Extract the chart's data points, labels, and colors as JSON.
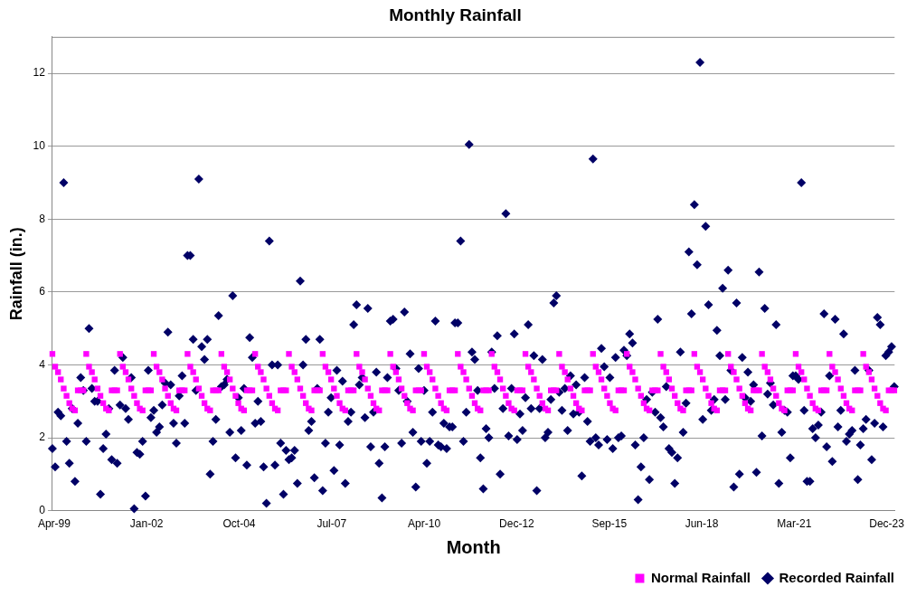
{
  "chart_data": {
    "type": "scatter",
    "title": "Monthly Rainfall",
    "xlabel": "Month",
    "ylabel": "Rainfall (in.)",
    "x": [
      "1999-04",
      "1999-05",
      "1999-06",
      "1999-07",
      "1999-08",
      "1999-09",
      "1999-10",
      "1999-11",
      "1999-12",
      "2000-01",
      "2000-02",
      "2000-03",
      "2000-04",
      "2000-05",
      "2000-06",
      "2000-07",
      "2000-08",
      "2000-09",
      "2000-10",
      "2000-11",
      "2000-12",
      "2001-01",
      "2001-02",
      "2001-03",
      "2001-04",
      "2001-05",
      "2001-06",
      "2001-07",
      "2001-08",
      "2001-09",
      "2001-10",
      "2001-11",
      "2001-12",
      "2002-01",
      "2002-02",
      "2002-03",
      "2002-04",
      "2002-05",
      "2002-06",
      "2002-07",
      "2002-08",
      "2002-09",
      "2002-10",
      "2002-11",
      "2002-12",
      "2003-01",
      "2003-02",
      "2003-03",
      "2003-04",
      "2003-05",
      "2003-06",
      "2003-07",
      "2003-08",
      "2003-09",
      "2003-10",
      "2003-11",
      "2003-12",
      "2004-01",
      "2004-02",
      "2004-03",
      "2004-04",
      "2004-05",
      "2004-06",
      "2004-07",
      "2004-08",
      "2004-09",
      "2004-10",
      "2004-11",
      "2004-12",
      "2005-01",
      "2005-02",
      "2005-03",
      "2005-04",
      "2005-05",
      "2005-06",
      "2005-07",
      "2005-08",
      "2005-09",
      "2005-10",
      "2005-11",
      "2005-12",
      "2006-01",
      "2006-02",
      "2006-03",
      "2006-04",
      "2006-05",
      "2006-06",
      "2006-07",
      "2006-08",
      "2006-09",
      "2006-10",
      "2006-11",
      "2006-12",
      "2007-01",
      "2007-02",
      "2007-03",
      "2007-04",
      "2007-05",
      "2007-06",
      "2007-07",
      "2007-08",
      "2007-09",
      "2007-10",
      "2007-11",
      "2007-12",
      "2008-01",
      "2008-02",
      "2008-03",
      "2008-04",
      "2008-05",
      "2008-06",
      "2008-07",
      "2008-08",
      "2008-09",
      "2008-10",
      "2008-11",
      "2008-12",
      "2009-01",
      "2009-02",
      "2009-03",
      "2009-04",
      "2009-05",
      "2009-06",
      "2009-07",
      "2009-08",
      "2009-09",
      "2009-10",
      "2009-11",
      "2009-12",
      "2010-01",
      "2010-02",
      "2010-03",
      "2010-04",
      "2010-05",
      "2010-06",
      "2010-07",
      "2010-08",
      "2010-09",
      "2010-10",
      "2010-11",
      "2010-12",
      "2011-01",
      "2011-02",
      "2011-03",
      "2011-04",
      "2011-05",
      "2011-06",
      "2011-07",
      "2011-08",
      "2011-09",
      "2011-10",
      "2011-11",
      "2011-12",
      "2012-01",
      "2012-02",
      "2012-03",
      "2012-04",
      "2012-05",
      "2012-06",
      "2012-07",
      "2012-08",
      "2012-09",
      "2012-10",
      "2012-11",
      "2012-12",
      "2013-01",
      "2013-02",
      "2013-03",
      "2013-04",
      "2013-05",
      "2013-06",
      "2013-07",
      "2013-08",
      "2013-09",
      "2013-10",
      "2013-11",
      "2013-12",
      "2014-01",
      "2014-02",
      "2014-03",
      "2014-04",
      "2014-05",
      "2014-06",
      "2014-07",
      "2014-08",
      "2014-09",
      "2014-10",
      "2014-11",
      "2014-12",
      "2015-01",
      "2015-02",
      "2015-03",
      "2015-04",
      "2015-05",
      "2015-06",
      "2015-07",
      "2015-08",
      "2015-09",
      "2015-10",
      "2015-11",
      "2015-12",
      "2016-01",
      "2016-02",
      "2016-03",
      "2016-04",
      "2016-05",
      "2016-06",
      "2016-07",
      "2016-08",
      "2016-09",
      "2016-10",
      "2016-11",
      "2016-12",
      "2017-01",
      "2017-02",
      "2017-03",
      "2017-04",
      "2017-05",
      "2017-06",
      "2017-07",
      "2017-08",
      "2017-09",
      "2017-10",
      "2017-11",
      "2017-12",
      "2018-01",
      "2018-02",
      "2018-03",
      "2018-04",
      "2018-05",
      "2018-06",
      "2018-07",
      "2018-08",
      "2018-09",
      "2018-10",
      "2018-11",
      "2018-12",
      "2019-01",
      "2019-02",
      "2019-03",
      "2019-04",
      "2019-05",
      "2019-06",
      "2019-07",
      "2019-08",
      "2019-09",
      "2019-10",
      "2019-11",
      "2019-12",
      "2020-01",
      "2020-02",
      "2020-03",
      "2020-04",
      "2020-05",
      "2020-06",
      "2020-07",
      "2020-08",
      "2020-09",
      "2020-10",
      "2020-11",
      "2020-12",
      "2021-01",
      "2021-02",
      "2021-03",
      "2021-04",
      "2021-05",
      "2021-06",
      "2021-07",
      "2021-08",
      "2021-09",
      "2021-10",
      "2021-11",
      "2021-12",
      "2022-01",
      "2022-02",
      "2022-03",
      "2022-04",
      "2022-05",
      "2022-06",
      "2022-07",
      "2022-08",
      "2022-09",
      "2022-10",
      "2022-11",
      "2022-12",
      "2023-01",
      "2023-02",
      "2023-03",
      "2023-04",
      "2023-05",
      "2023-06",
      "2023-07",
      "2023-08",
      "2023-09",
      "2023-10",
      "2023-11",
      "2023-12",
      "2024-01",
      "2024-02",
      "2024-03"
    ],
    "series": [
      {
        "name": "Normal Rainfall",
        "color": "#ff00ff",
        "marker": "square",
        "values": [
          4.3,
          3.95,
          3.8,
          3.6,
          3.35,
          3.15,
          2.95,
          2.8,
          2.75,
          3.3,
          3.3,
          3.3,
          4.3,
          3.95,
          3.8,
          3.6,
          3.35,
          3.15,
          2.95,
          2.8,
          2.75,
          3.3,
          3.3,
          3.3,
          4.3,
          3.95,
          3.8,
          3.6,
          3.35,
          3.15,
          2.95,
          2.8,
          2.75,
          3.3,
          3.3,
          3.3,
          4.3,
          3.95,
          3.8,
          3.6,
          3.35,
          3.15,
          2.95,
          2.8,
          2.75,
          3.3,
          3.3,
          3.3,
          4.3,
          3.95,
          3.8,
          3.6,
          3.35,
          3.15,
          2.95,
          2.8,
          2.75,
          3.3,
          3.3,
          3.3,
          4.3,
          3.95,
          3.8,
          3.6,
          3.35,
          3.15,
          2.95,
          2.8,
          2.75,
          3.3,
          3.3,
          3.3,
          4.3,
          3.95,
          3.8,
          3.6,
          3.35,
          3.15,
          2.95,
          2.8,
          2.75,
          3.3,
          3.3,
          3.3,
          4.3,
          3.95,
          3.8,
          3.6,
          3.35,
          3.15,
          2.95,
          2.8,
          2.75,
          3.3,
          3.3,
          3.3,
          4.3,
          3.95,
          3.8,
          3.6,
          3.35,
          3.15,
          2.95,
          2.8,
          2.75,
          3.3,
          3.3,
          3.3,
          4.3,
          3.95,
          3.8,
          3.6,
          3.35,
          3.15,
          2.95,
          2.8,
          2.75,
          3.3,
          3.3,
          3.3,
          4.3,
          3.95,
          3.8,
          3.6,
          3.35,
          3.15,
          2.95,
          2.8,
          2.75,
          3.3,
          3.3,
          3.3,
          4.3,
          3.95,
          3.8,
          3.6,
          3.35,
          3.15,
          2.95,
          2.8,
          2.75,
          3.3,
          3.3,
          3.3,
          4.3,
          3.95,
          3.8,
          3.6,
          3.35,
          3.15,
          2.95,
          2.8,
          2.75,
          3.3,
          3.3,
          3.3,
          4.3,
          3.95,
          3.8,
          3.6,
          3.35,
          3.15,
          2.95,
          2.8,
          2.75,
          3.3,
          3.3,
          3.3,
          4.3,
          3.95,
          3.8,
          3.6,
          3.35,
          3.15,
          2.95,
          2.8,
          2.75,
          3.3,
          3.3,
          3.3,
          4.3,
          3.95,
          3.8,
          3.6,
          3.35,
          3.15,
          2.95,
          2.8,
          2.75,
          3.3,
          3.3,
          3.3,
          4.3,
          3.95,
          3.8,
          3.6,
          3.35,
          3.15,
          2.95,
          2.8,
          2.75,
          3.3,
          3.3,
          3.3,
          4.3,
          3.95,
          3.8,
          3.6,
          3.35,
          3.15,
          2.95,
          2.8,
          2.75,
          3.3,
          3.3,
          3.3,
          4.3,
          3.95,
          3.8,
          3.6,
          3.35,
          3.15,
          2.95,
          2.8,
          2.75,
          3.3,
          3.3,
          3.3,
          4.3,
          3.95,
          3.8,
          3.6,
          3.35,
          3.15,
          2.95,
          2.8,
          2.75,
          3.3,
          3.3,
          3.3,
          4.3,
          3.95,
          3.8,
          3.6,
          3.35,
          3.15,
          2.95,
          2.8,
          2.75,
          3.3,
          3.3,
          3.3,
          4.3,
          3.95,
          3.8,
          3.6,
          3.35,
          3.15,
          2.95,
          2.8,
          2.75,
          3.3,
          3.3,
          3.3,
          4.3,
          3.95,
          3.8,
          3.6,
          3.35,
          3.15,
          2.95,
          2.8,
          2.75,
          3.3,
          3.3,
          3.3,
          4.3,
          3.95,
          3.8,
          3.6,
          3.35,
          3.15,
          2.95,
          2.8,
          2.75,
          3.3,
          3.3,
          3.3,
          4.3,
          3.95,
          3.8,
          3.6,
          3.35,
          3.15,
          2.95,
          2.8,
          2.75,
          3.3,
          3.3,
          3.3
        ]
      },
      {
        "name": "Recorded Rainfall",
        "color": "#000066",
        "marker": "diamond",
        "values": [
          1.7,
          1.2,
          2.7,
          2.6,
          9.0,
          1.9,
          1.3,
          2.8,
          0.8,
          2.4,
          3.65,
          3.3,
          1.9,
          5.0,
          3.35,
          3.0,
          3.0,
          0.45,
          1.7,
          2.1,
          2.8,
          1.4,
          3.85,
          1.3,
          2.9,
          4.2,
          2.8,
          2.5,
          3.65,
          0.05,
          1.6,
          1.55,
          1.9,
          0.4,
          3.85,
          2.55,
          2.75,
          2.15,
          2.3,
          2.9,
          3.5,
          4.9,
          3.45,
          2.4,
          1.85,
          3.15,
          3.7,
          2.4,
          7.0,
          7.0,
          4.7,
          3.3,
          9.1,
          4.5,
          4.15,
          4.7,
          1.0,
          1.9,
          2.5,
          5.35,
          3.4,
          3.45,
          3.6,
          2.15,
          5.9,
          1.45,
          3.1,
          2.2,
          3.35,
          1.25,
          4.75,
          4.2,
          2.4,
          3.0,
          2.45,
          1.2,
          0.2,
          7.4,
          4.0,
          1.25,
          4.0,
          1.85,
          0.45,
          1.65,
          1.4,
          1.45,
          1.65,
          0.75,
          6.3,
          4.0,
          4.7,
          2.2,
          2.45,
          0.9,
          3.35,
          4.7,
          0.55,
          1.85,
          2.7,
          3.1,
          1.1,
          3.85,
          1.8,
          3.55,
          0.75,
          2.45,
          2.7,
          5.1,
          5.65,
          3.45,
          3.65,
          2.55,
          5.55,
          1.75,
          2.7,
          3.8,
          1.3,
          0.35,
          1.75,
          3.65,
          5.2,
          5.25,
          3.9,
          3.3,
          1.85,
          5.45,
          3.0,
          4.3,
          2.15,
          0.65,
          3.9,
          1.9,
          3.3,
          1.3,
          1.9,
          2.7,
          5.2,
          1.8,
          1.75,
          2.4,
          1.7,
          2.3,
          2.3,
          5.15,
          5.15,
          7.4,
          1.9,
          2.7,
          10.05,
          4.35,
          4.15,
          3.3,
          1.45,
          0.6,
          2.25,
          2.0,
          4.35,
          3.35,
          4.8,
          1.0,
          2.8,
          8.15,
          2.05,
          3.35,
          4.85,
          1.95,
          2.65,
          2.2,
          3.1,
          5.1,
          2.8,
          4.25,
          0.55,
          2.8,
          4.15,
          2.0,
          2.15,
          3.05,
          5.7,
          5.9,
          3.25,
          2.75,
          3.35,
          2.2,
          3.7,
          2.65,
          3.45,
          2.7,
          0.95,
          3.65,
          2.45,
          1.9,
          9.65,
          2.0,
          1.8,
          4.45,
          3.95,
          1.95,
          3.65,
          1.7,
          4.2,
          2.0,
          2.05,
          4.4,
          4.25,
          4.85,
          4.6,
          1.8,
          0.3,
          1.2,
          2.0,
          3.05,
          0.85,
          3.25,
          2.7,
          5.25,
          2.55,
          2.3,
          3.4,
          1.7,
          1.6,
          0.75,
          1.45,
          4.35,
          2.15,
          2.95,
          7.1,
          5.4,
          8.4,
          6.75,
          12.3,
          2.5,
          7.8,
          5.65,
          2.75,
          3.05,
          4.95,
          4.25,
          6.1,
          3.05,
          6.6,
          3.85,
          0.65,
          5.7,
          1.0,
          4.2,
          3.1,
          3.8,
          3.0,
          3.45,
          1.05,
          6.55,
          2.05,
          5.55,
          3.2,
          3.5,
          2.9,
          5.1,
          0.75,
          2.15,
          2.75,
          2.7,
          1.45,
          3.7,
          3.7,
          3.6,
          9.0,
          2.75,
          0.8,
          0.8,
          2.25,
          2.0,
          2.35,
          2.7,
          5.4,
          1.75,
          3.7,
          1.35,
          5.25,
          2.3,
          2.75,
          4.85,
          1.9,
          2.1,
          2.2,
          3.85,
          0.85,
          1.8,
          2.25,
          2.5,
          3.85,
          1.4,
          2.4,
          5.3,
          5.1,
          2.3,
          4.25,
          4.35,
          4.5,
          3.4
        ]
      }
    ],
    "xlim": [
      "1999-04-01",
      "2024-03-05"
    ],
    "xticks": [
      {
        "value": "1999-04-20",
        "label": "Apr-99"
      },
      {
        "value": "2002-01-14",
        "label": "Jan-02"
      },
      {
        "value": "2004-10-10",
        "label": "Oct-04"
      },
      {
        "value": "2007-07-07",
        "label": "Jul-07"
      },
      {
        "value": "2010-04-02",
        "label": "Apr-10"
      },
      {
        "value": "2012-12-28",
        "label": "Dec-12"
      },
      {
        "value": "2015-09-24",
        "label": "Sep-15"
      },
      {
        "value": "2018-06-20",
        "label": "Jun-18"
      },
      {
        "value": "2021-03-16",
        "label": "Mar-21"
      },
      {
        "value": "2023-12-11",
        "label": "Dec-23"
      }
    ],
    "ylim": [
      0,
      13
    ],
    "yticks": [
      0,
      2,
      4,
      6,
      8,
      10,
      12
    ],
    "grid": "y",
    "legend": "bottom right"
  }
}
